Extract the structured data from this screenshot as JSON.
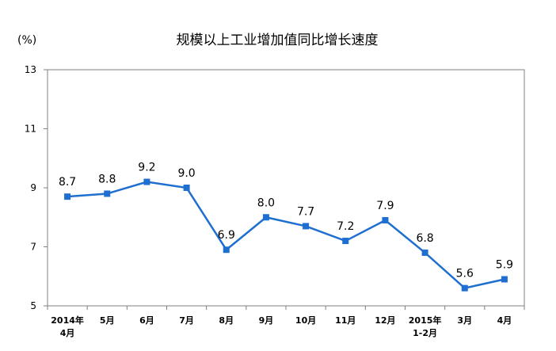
{
  "chart_data": {
    "type": "line",
    "title": "规模以上工业增加值同比增长速度",
    "ylabel": "(%)",
    "xlabel": "",
    "ylim": [
      5,
      13
    ],
    "yticks": [
      "5",
      "7",
      "9",
      "11",
      "13"
    ],
    "grid": false,
    "categories": [
      [
        "2014年",
        "4月"
      ],
      [
        "5月"
      ],
      [
        "6月"
      ],
      [
        "7月"
      ],
      [
        "8月"
      ],
      [
        "9月"
      ],
      [
        "10月"
      ],
      [
        "11月"
      ],
      [
        "12月"
      ],
      [
        "2015年",
        "1-2月"
      ],
      [
        "3月"
      ],
      [
        "4月"
      ]
    ],
    "values": [
      8.7,
      8.8,
      9.2,
      9.0,
      6.9,
      8.0,
      7.7,
      7.2,
      7.9,
      6.8,
      5.6,
      5.9
    ],
    "data_labels": [
      "8.7",
      "8.8",
      "9.2",
      "9.0",
      "6.9",
      "8.0",
      "7.7",
      "7.2",
      "7.9",
      "6.8",
      "5.6",
      "5.9"
    ],
    "line_color": "#1f6fd0"
  }
}
